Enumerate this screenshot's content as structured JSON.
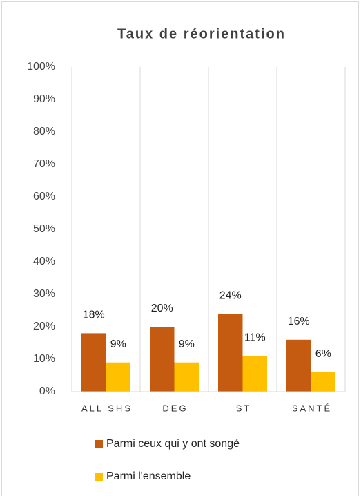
{
  "chart_data": {
    "type": "bar",
    "title": "Taux de réorientation",
    "categories": [
      "ALL SHS",
      "DEG",
      "ST",
      "SANTÉ"
    ],
    "series": [
      {
        "name": "Parmi ceux qui y ont songé",
        "color": "#c55a11",
        "values": [
          18,
          20,
          24,
          16
        ],
        "value_labels": [
          "18%",
          "20%",
          "24%",
          "16%"
        ]
      },
      {
        "name": "Parmi l'ensemble",
        "color": "#ffc000",
        "values": [
          9,
          9,
          11,
          6
        ],
        "value_labels": [
          "9%",
          "9%",
          "11%",
          "6%"
        ]
      }
    ],
    "ylim": [
      0,
      100
    ],
    "yticks": [
      {
        "value": 0,
        "label": "0%"
      },
      {
        "value": 10,
        "label": "10%"
      },
      {
        "value": 20,
        "label": "20%"
      },
      {
        "value": 30,
        "label": "30%"
      },
      {
        "value": 40,
        "label": "40%"
      },
      {
        "value": 50,
        "label": "50%"
      },
      {
        "value": 60,
        "label": "60%"
      },
      {
        "value": 70,
        "label": "70%"
      },
      {
        "value": 80,
        "label": "80%"
      },
      {
        "value": 90,
        "label": "90%"
      },
      {
        "value": 100,
        "label": "100%"
      }
    ],
    "legend": "bottom"
  }
}
